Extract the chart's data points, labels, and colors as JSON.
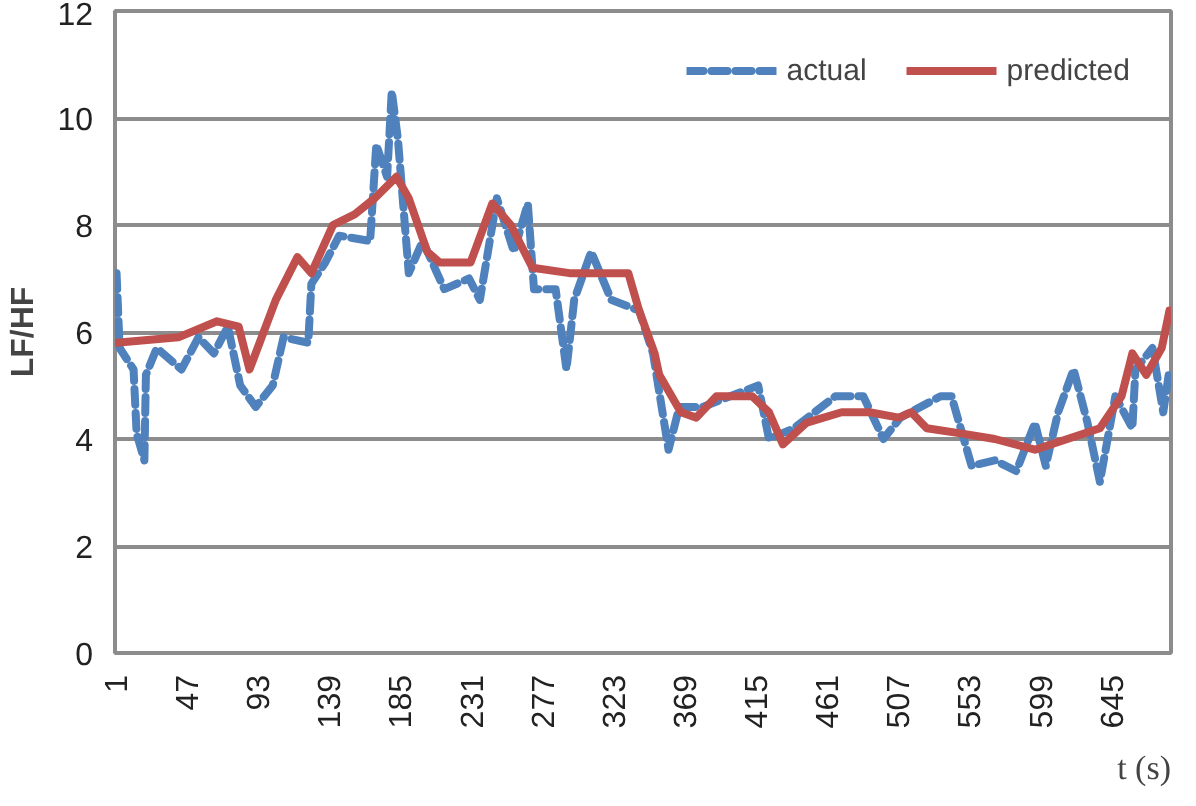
{
  "chart_data": {
    "type": "line",
    "xlabel": "t (s)",
    "ylabel": "LF/HF",
    "xlim": [
      1,
      684
    ],
    "xticks": [
      1,
      47,
      93,
      139,
      185,
      231,
      277,
      323,
      369,
      415,
      461,
      507,
      553,
      599,
      645
    ],
    "ylim": [
      0,
      12
    ],
    "yticks": [
      0,
      2,
      4,
      6,
      8,
      10,
      12
    ],
    "grid": "y",
    "legend": "top right",
    "series": [
      {
        "name": "actual",
        "color": "#4f81bd",
        "line_style": "dashed",
        "x": [
          2,
          4,
          13,
          15,
          20,
          21,
          28,
          44,
          55,
          65,
          74,
          82,
          92,
          103,
          110,
          126,
          128,
          137,
          146,
          166,
          170,
          177,
          180,
          184,
          191,
          200,
          214,
          230,
          237,
          248,
          259,
          268,
          272,
          286,
          293,
          298,
          309,
          322,
          340,
          349,
          359,
          366,
          381,
          417,
          424,
          440,
          467,
          485,
          498,
          509,
          535,
          542,
          555,
          570,
          584,
          596,
          603,
          611,
          621,
          630,
          638,
          648,
          659,
          661,
          672,
          679,
          683
        ],
        "values": [
          7.1,
          5.7,
          5.3,
          4.1,
          3.6,
          5.2,
          5.7,
          5.3,
          5.9,
          5.6,
          6.1,
          5.0,
          4.6,
          5.0,
          5.9,
          5.8,
          6.9,
          7.3,
          7.8,
          7.7,
          9.5,
          8.9,
          10.5,
          9.6,
          7.1,
          7.7,
          6.8,
          7.0,
          6.6,
          8.5,
          7.5,
          8.4,
          6.8,
          6.8,
          5.3,
          6.6,
          7.5,
          6.6,
          6.4,
          5.6,
          3.8,
          4.6,
          4.6,
          5.0,
          4.0,
          4.2,
          4.8,
          4.8,
          4.0,
          4.4,
          4.8,
          4.8,
          3.5,
          3.6,
          3.4,
          4.3,
          3.5,
          4.5,
          5.3,
          4.3,
          3.2,
          4.8,
          4.2,
          5.3,
          5.7,
          4.5,
          5.3
        ]
      },
      {
        "name": "predicted",
        "color": "#c0504d",
        "line_style": "solid",
        "x": [
          2,
          42,
          67,
          81,
          88,
          105,
          119,
          128,
          142,
          156,
          169,
          183,
          191,
          203,
          211,
          231,
          245,
          257,
          271,
          295,
          333,
          340,
          350,
          353,
          367,
          377,
          390,
          413,
          424,
          433,
          448,
          471,
          489,
          508,
          516,
          526,
          549,
          570,
          596,
          617,
          638,
          652,
          659,
          668,
          678,
          683
        ],
        "values": [
          5.8,
          5.9,
          6.2,
          6.1,
          5.3,
          6.6,
          7.4,
          7.1,
          8.0,
          8.2,
          8.5,
          8.9,
          8.5,
          7.5,
          7.3,
          7.3,
          8.4,
          8.0,
          7.2,
          7.1,
          7.1,
          6.4,
          5.6,
          5.2,
          4.5,
          4.4,
          4.8,
          4.8,
          4.5,
          3.9,
          4.3,
          4.5,
          4.5,
          4.4,
          4.5,
          4.2,
          4.1,
          4.0,
          3.8,
          4.0,
          4.2,
          4.8,
          5.6,
          5.2,
          5.7,
          6.4
        ]
      }
    ]
  }
}
